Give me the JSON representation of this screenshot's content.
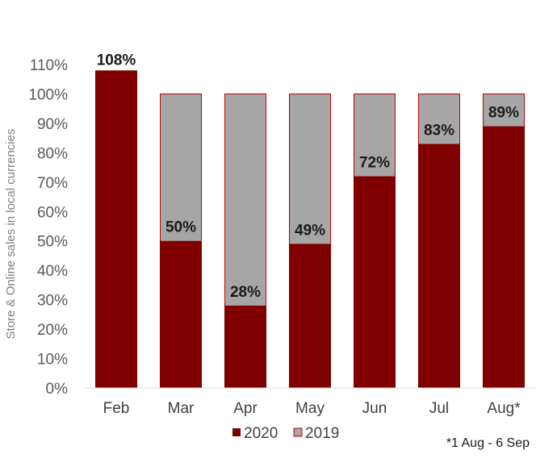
{
  "chart_data": {
    "type": "bar",
    "stacked": false,
    "overlay": true,
    "categories": [
      "Feb",
      "Mar",
      "Apr",
      "May",
      "Jun",
      "Jul",
      "Aug*"
    ],
    "series": [
      {
        "name": "2019",
        "values": [
          100,
          100,
          100,
          100,
          100,
          100,
          100
        ],
        "color": "#a6a6a6",
        "border": "#c00000"
      },
      {
        "name": "2020",
        "values": [
          108,
          50,
          28,
          49,
          72,
          83,
          89
        ],
        "color": "#800000"
      }
    ],
    "data_labels": [
      "108%",
      "50%",
      "28%",
      "49%",
      "72%",
      "83%",
      "89%"
    ],
    "ylabel": "Store & Online sales in local currencies",
    "ylim": [
      0,
      110
    ],
    "yticks": [
      0,
      10,
      20,
      30,
      40,
      50,
      60,
      70,
      80,
      90,
      100,
      110
    ],
    "ytick_labels": [
      "0%",
      "10%",
      "20%",
      "30%",
      "40%",
      "50%",
      "60%",
      "70%",
      "80%",
      "90%",
      "100%",
      "110%"
    ],
    "grid": false,
    "legend": {
      "position": "bottom",
      "entries": [
        "2020",
        "2019"
      ]
    },
    "footnote": "*1 Aug - 6 Sep"
  }
}
